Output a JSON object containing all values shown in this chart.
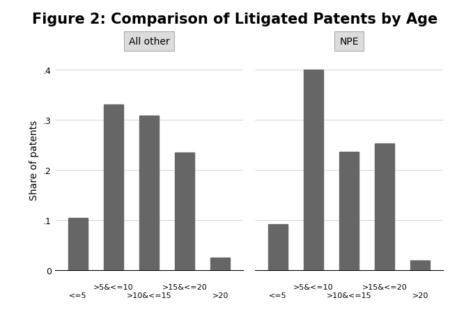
{
  "title": "Figure 2: Comparison of Litigated Patents by Age",
  "panel_labels": [
    "All other",
    "NPE"
  ],
  "categories": [
    "<=5",
    ">5&<=10",
    ">10&<=15",
    ">15&<=20",
    ">20"
  ],
  "all_other_values": [
    0.104,
    0.33,
    0.308,
    0.234,
    0.024
  ],
  "npe_values": [
    0.092,
    0.4,
    0.236,
    0.253,
    0.019
  ],
  "bar_color": "#666666",
  "bar_width": 0.55,
  "ylim": [
    0,
    0.44
  ],
  "yticks": [
    0,
    0.1,
    0.2,
    0.3,
    0.4
  ],
  "ytick_labels": [
    "0",
    ".1",
    ".2",
    ".3",
    ".4"
  ],
  "ylabel": "Share of patents",
  "panel_header_bg": "#dcdcdc",
  "plot_bg": "#ffffff",
  "fig_bg": "#ffffff",
  "title_fontsize": 15,
  "label_fontsize": 10,
  "tick_fontsize": 9,
  "header_fontsize": 10
}
